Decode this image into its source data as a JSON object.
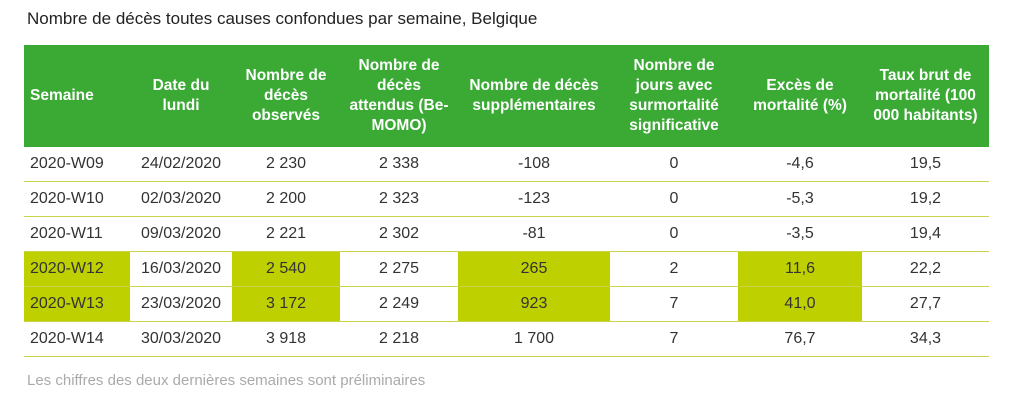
{
  "title": "Nombre de décès toutes causes confondues par semaine, Belgique",
  "headers": [
    "Semaine",
    "Date du lundi",
    "Nombre de décès observés",
    "Nombre de décès attendus (Be-MOMO)",
    "Nombre de décès supplémentaires",
    "Nombre de jours avec surmortalité significative",
    "Excès de mortalité (%)",
    "Taux brut de mortalité (100 000 habitants)"
  ],
  "rows": [
    [
      "2020-W09",
      "24/02/2020",
      "2 230",
      "2 338",
      "-108",
      "0",
      "-4,6",
      "19,5"
    ],
    [
      "2020-W10",
      "02/03/2020",
      "2 200",
      "2 323",
      "-123",
      "0",
      "-5,3",
      "19,2"
    ],
    [
      "2020-W11",
      "09/03/2020",
      "2 221",
      "2 302",
      "-81",
      "0",
      "-3,5",
      "19,4"
    ],
    [
      "2020-W12",
      "16/03/2020",
      "2 540",
      "2 275",
      "265",
      "2",
      "11,6",
      "22,2"
    ],
    [
      "2020-W13",
      "23/03/2020",
      "3 172",
      "2 249",
      "923",
      "7",
      "41,0",
      "27,7"
    ],
    [
      "2020-W14",
      "30/03/2020",
      "3 918",
      "2 218",
      "1 700",
      "7",
      "76,7",
      "34,3"
    ]
  ],
  "highlight_color": "#bfd000",
  "header_color": "#3aaa35",
  "footnote": "Les chiffres des deux dernières semaines sont préliminaires"
}
